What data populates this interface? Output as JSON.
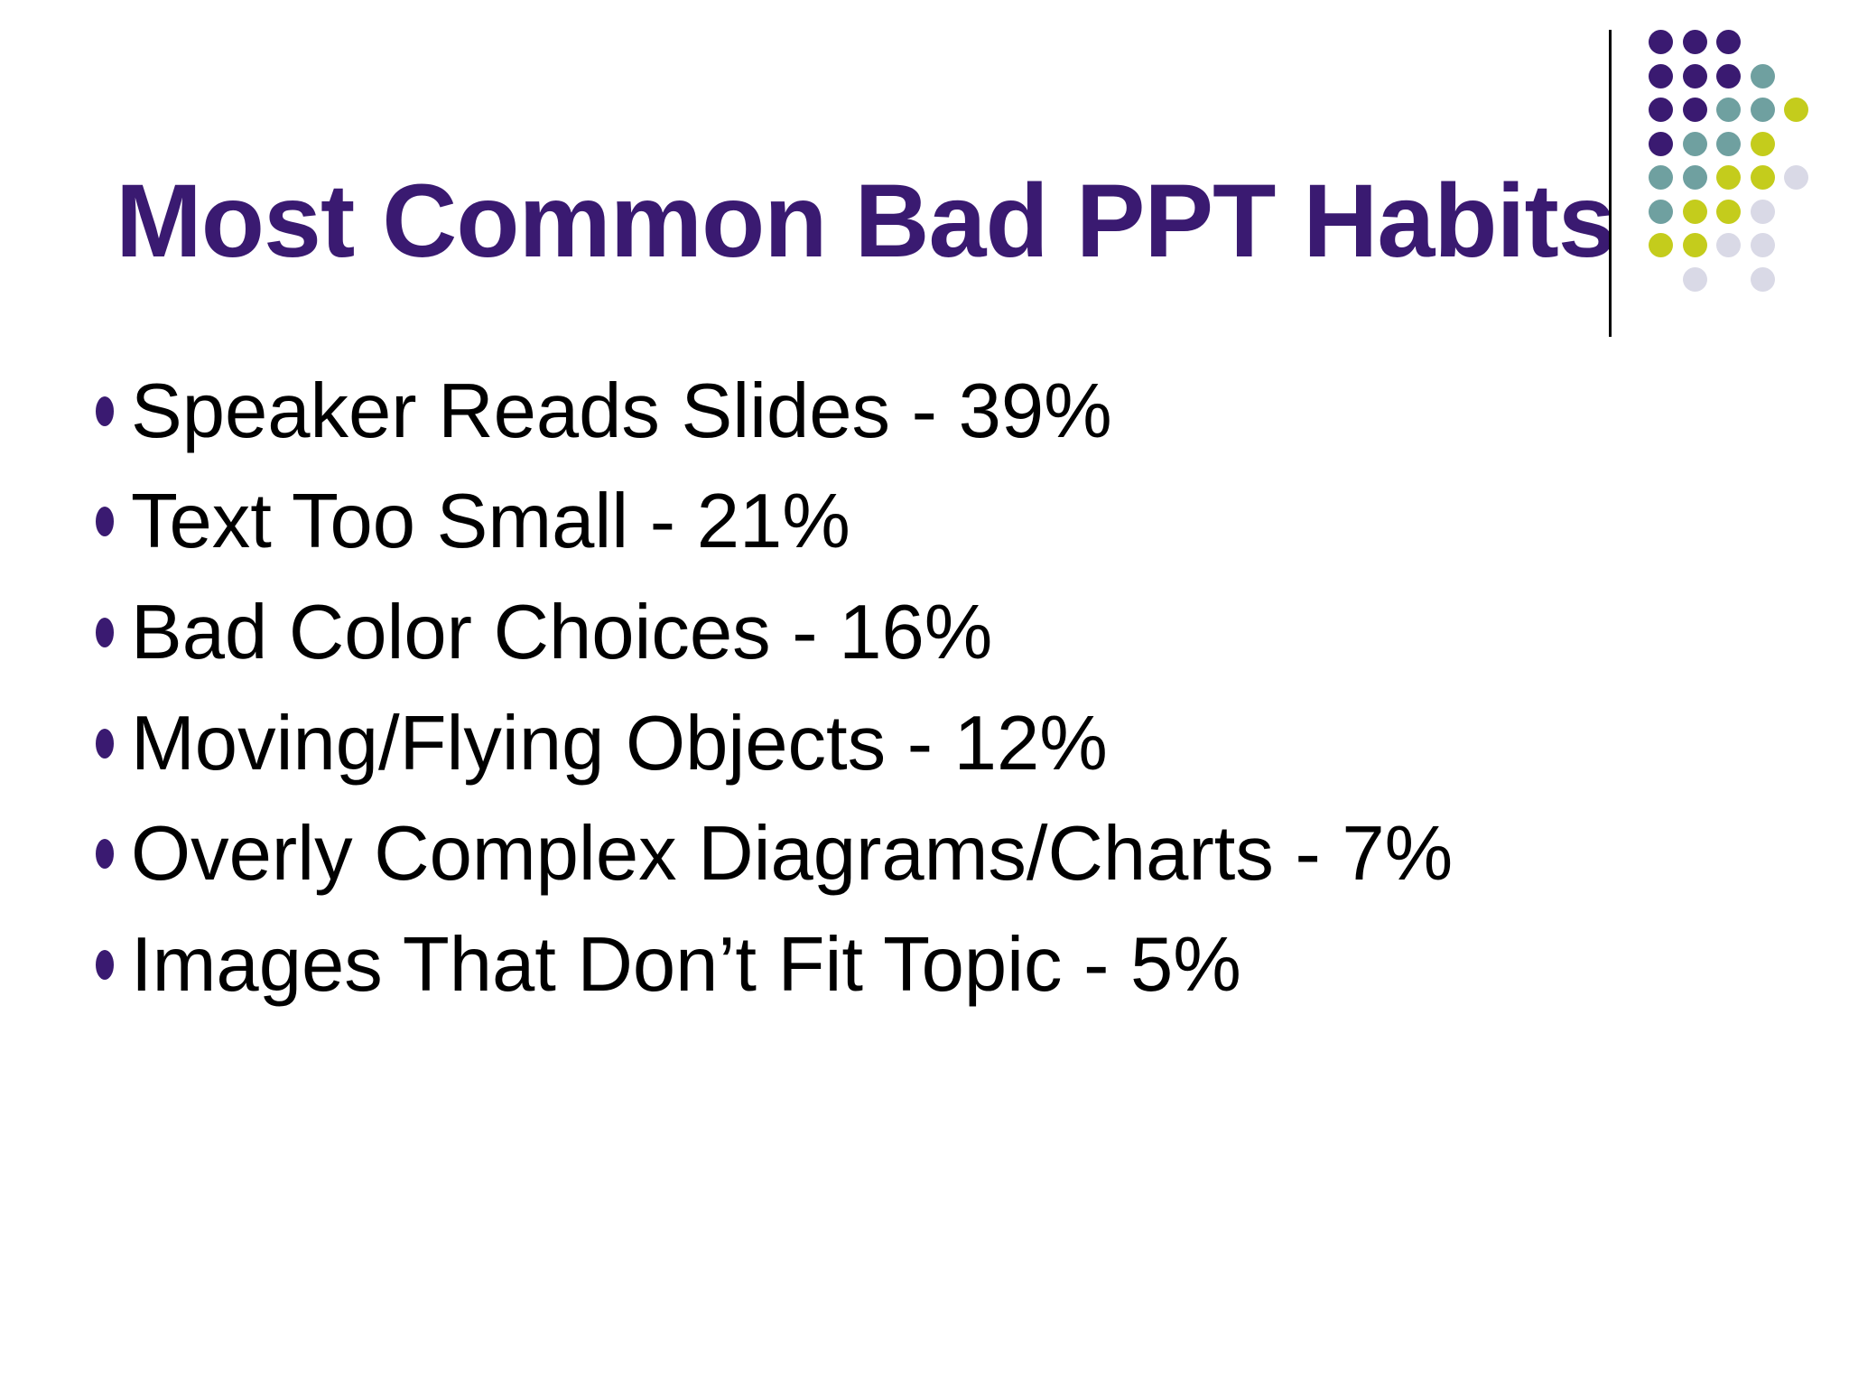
{
  "slide": {
    "title": "Most Common Bad PPT Habits",
    "bullets": [
      "Speaker Reads Slides - 39%",
      "Text Too Small - 21%",
      "Bad Color Choices - 16%",
      "Moving/Flying Objects - 12%",
      "Overly Complex Diagrams/Charts - 7%",
      "Images That Don’t Fit Topic - 5%"
    ]
  },
  "decoration": {
    "divider_color": "#000000",
    "dot_colors": {
      "P": "#3a1a71",
      "T": "#6fa0a0",
      "Y": "#c4cc1c",
      "G": "#d9d9e6"
    },
    "dot_pattern": [
      "PPP..",
      "PPPT.",
      "PPTTY",
      "PTTY.",
      "TTYYG",
      "TYYG.",
      "YYGG.",
      ".G.G."
    ]
  },
  "theme": {
    "background": "#ffffff",
    "title_color": "#3a1a71",
    "body_text_color": "#000000",
    "bullet_marker_color": "#3a1a71"
  }
}
